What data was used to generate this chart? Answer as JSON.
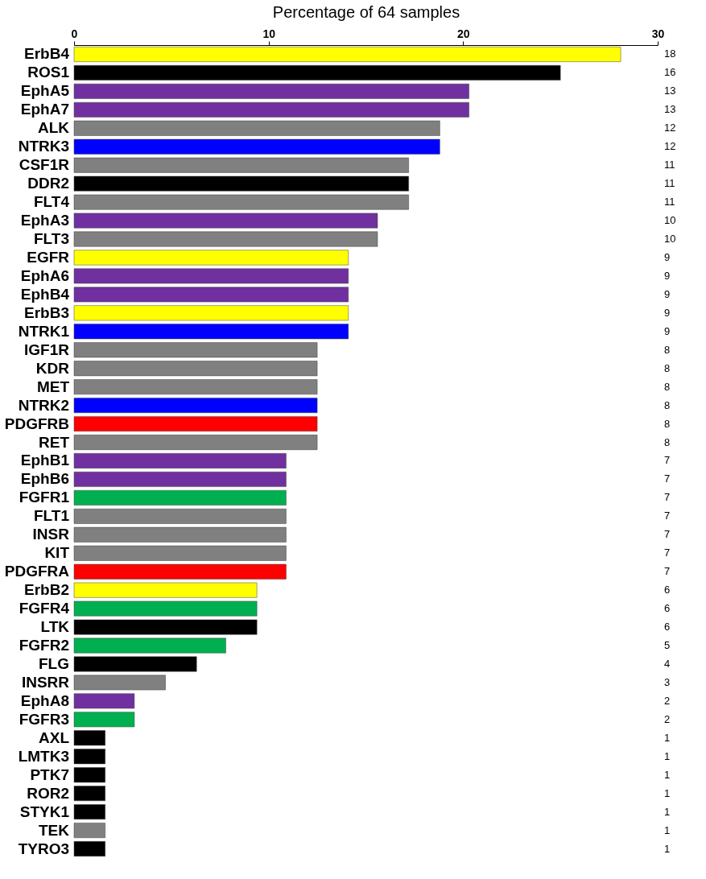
{
  "chart_data": {
    "type": "bar",
    "orientation": "horizontal",
    "xlabel": "Percentage of 64 samples",
    "categories": [
      "ErbB4",
      "ROS1",
      "EphA5",
      "EphA7",
      "ALK",
      "NTRK3",
      "CSF1R",
      "DDR2",
      "FLT4",
      "EphA3",
      "FLT3",
      "EGFR",
      "EphA6",
      "EphB4",
      "ErbB3",
      "NTRK1",
      "IGF1R",
      "KDR",
      "MET",
      "NTRK2",
      "PDGFRB",
      "RET",
      "EphB1",
      "EphB6",
      "FGFR1",
      "FLT1",
      "INSR",
      "KIT",
      "PDGFRA",
      "ErbB2",
      "FGFR4",
      "LTK",
      "FGFR2",
      "FLG",
      "INSRR",
      "EphA8",
      "FGFR3",
      "AXL",
      "LMTK3",
      "PTK7",
      "ROR2",
      "STYK1",
      "TEK",
      "TYRO3"
    ],
    "values": [
      28.1,
      25,
      20.3,
      20.3,
      18.8,
      18.8,
      17.2,
      17.2,
      17.2,
      15.6,
      15.6,
      14.1,
      14.1,
      14.1,
      14.1,
      14.1,
      12.5,
      12.5,
      12.5,
      12.5,
      12.5,
      12.5,
      10.9,
      10.9,
      10.9,
      10.9,
      10.9,
      10.9,
      10.9,
      9.4,
      9.4,
      9.4,
      7.8,
      6.3,
      4.7,
      3.1,
      3.1,
      1.6,
      1.6,
      1.6,
      1.6,
      1.6,
      1.6,
      1.6
    ],
    "colors": [
      "#ffff00",
      "#000000",
      "#7030a0",
      "#7030a0",
      "#808080",
      "#0000ff",
      "#808080",
      "#000000",
      "#808080",
      "#7030a0",
      "#808080",
      "#ffff00",
      "#7030a0",
      "#7030a0",
      "#ffff00",
      "#0000ff",
      "#808080",
      "#808080",
      "#808080",
      "#0000ff",
      "#ff0000",
      "#808080",
      "#7030a0",
      "#7030a0",
      "#00b050",
      "#808080",
      "#808080",
      "#808080",
      "#ff0000",
      "#ffff00",
      "#00b050",
      "#000000",
      "#00b050",
      "#000000",
      "#808080",
      "#7030a0",
      "#00b050",
      "#000000",
      "#000000",
      "#000000",
      "#000000",
      "#000000",
      "#808080",
      "#000000"
    ],
    "annotations": [
      "18",
      "16",
      "13",
      "13",
      "12",
      "12",
      "11",
      "11",
      "11",
      "10",
      "10",
      "9",
      "9",
      "9",
      "9",
      "9",
      "8",
      "8",
      "8",
      "8",
      "8",
      "8",
      "7",
      "7",
      "7",
      "7",
      "7",
      "7",
      "7",
      "6",
      "6",
      "6",
      "5",
      "4",
      "3",
      "2",
      "2",
      "1",
      "1",
      "1",
      "1",
      "1",
      "1",
      "1"
    ],
    "xlim": [
      0,
      30
    ],
    "xticks": [
      0,
      10,
      20,
      30
    ],
    "grid": false
  }
}
